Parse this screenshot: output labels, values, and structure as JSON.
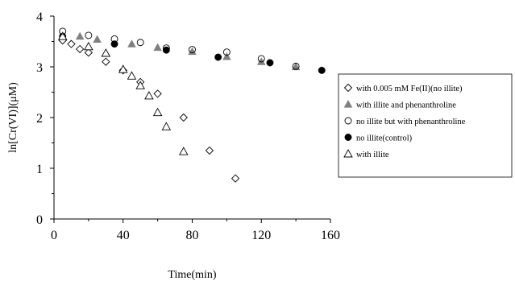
{
  "chart_data": {
    "type": "scatter",
    "title": "",
    "xlabel": "Time(min)",
    "ylabel": "ln[Cr(VI)](μM)",
    "xlim": [
      0,
      160
    ],
    "ylim": [
      0,
      4
    ],
    "xticks": [
      "0",
      "40",
      "80",
      "120",
      "160"
    ],
    "yticks": [
      "0",
      "1",
      "2",
      "3",
      "4"
    ],
    "grid": false,
    "legend_position": "right",
    "series": [
      {
        "name": "with 0.005 mM Fe(II)(no illite)",
        "marker": "diamond-open",
        "points": [
          [
            5,
            3.52
          ],
          [
            10,
            3.45
          ],
          [
            15,
            3.35
          ],
          [
            20,
            3.28
          ],
          [
            30,
            3.1
          ],
          [
            40,
            2.93
          ],
          [
            50,
            2.7
          ],
          [
            60,
            2.47
          ],
          [
            75,
            2.0
          ],
          [
            90,
            1.35
          ],
          [
            105,
            0.8
          ]
        ]
      },
      {
        "name": "with illite and phenanthroline",
        "marker": "triangle-filled",
        "points": [
          [
            5,
            3.58
          ],
          [
            15,
            3.6
          ],
          [
            25,
            3.54
          ],
          [
            45,
            3.45
          ],
          [
            60,
            3.38
          ],
          [
            80,
            3.3
          ],
          [
            100,
            3.2
          ],
          [
            120,
            3.1
          ],
          [
            140,
            3.0
          ]
        ]
      },
      {
        "name": "no illite but with phenanthroline",
        "marker": "circle-open",
        "points": [
          [
            5,
            3.7
          ],
          [
            20,
            3.62
          ],
          [
            35,
            3.55
          ],
          [
            50,
            3.48
          ],
          [
            65,
            3.37
          ],
          [
            80,
            3.34
          ],
          [
            100,
            3.29
          ],
          [
            120,
            3.16
          ],
          [
            140,
            3.01
          ]
        ]
      },
      {
        "name": "no illite(control)",
        "marker": "circle-filled",
        "points": [
          [
            5,
            3.6
          ],
          [
            35,
            3.45
          ],
          [
            65,
            3.33
          ],
          [
            95,
            3.19
          ],
          [
            125,
            3.08
          ],
          [
            155,
            2.93
          ]
        ]
      },
      {
        "name": "with illite",
        "marker": "triangle-open",
        "points": [
          [
            5,
            3.6
          ],
          [
            20,
            3.4
          ],
          [
            30,
            3.27
          ],
          [
            40,
            2.95
          ],
          [
            45,
            2.82
          ],
          [
            50,
            2.63
          ],
          [
            55,
            2.43
          ],
          [
            60,
            2.1
          ],
          [
            65,
            1.82
          ],
          [
            75,
            1.33
          ]
        ]
      }
    ]
  },
  "colors": {
    "axis": "#000000",
    "marker_fill": "#000000",
    "marker_gray": "#808080",
    "background": "#ffffff"
  }
}
